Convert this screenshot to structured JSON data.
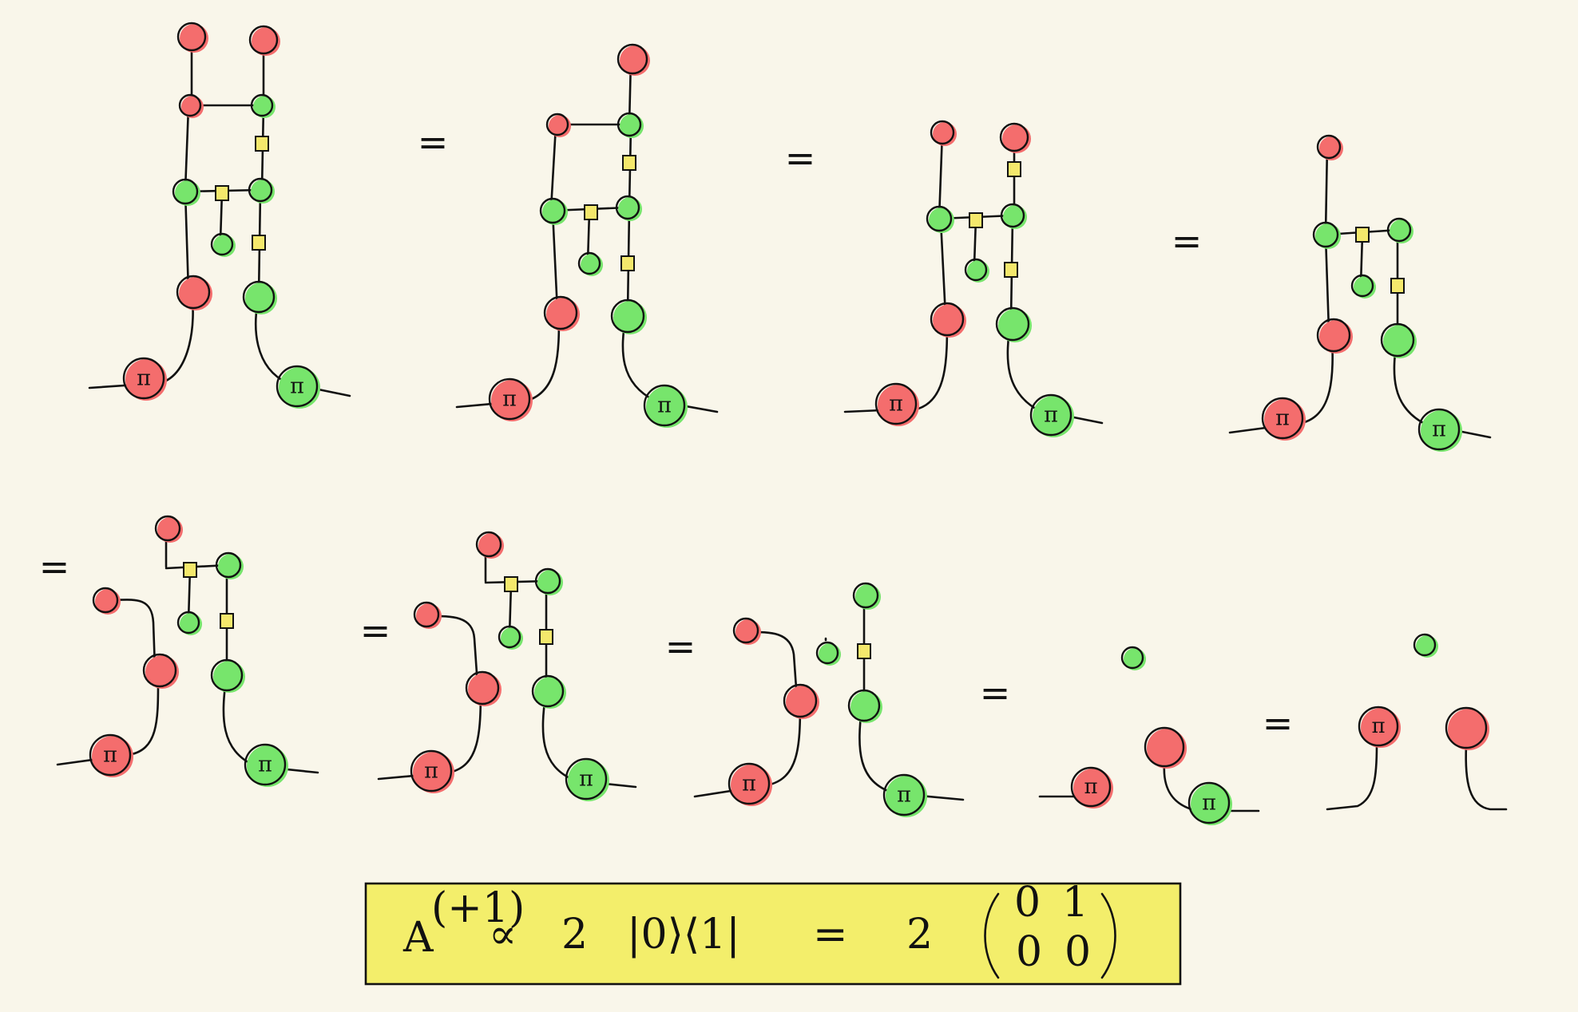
{
  "colors": {
    "background": "#f9f6ea",
    "red_spider": "#f46d6d",
    "green_spider": "#77e56c",
    "hadamard_box": "#f4e86c",
    "highlight": "#f3ee6b",
    "ink": "#111111"
  },
  "labels": {
    "pi": "π",
    "equals": "="
  },
  "formula": {
    "operator": "A",
    "superscript": "(+1)",
    "proportional": "∝",
    "factor_left": "2",
    "ket_bra": "|0⟩⟨1|",
    "equals": "=",
    "factor_right": "2",
    "matrix": [
      [
        "0",
        "1"
      ],
      [
        "0",
        "0"
      ]
    ]
  }
}
